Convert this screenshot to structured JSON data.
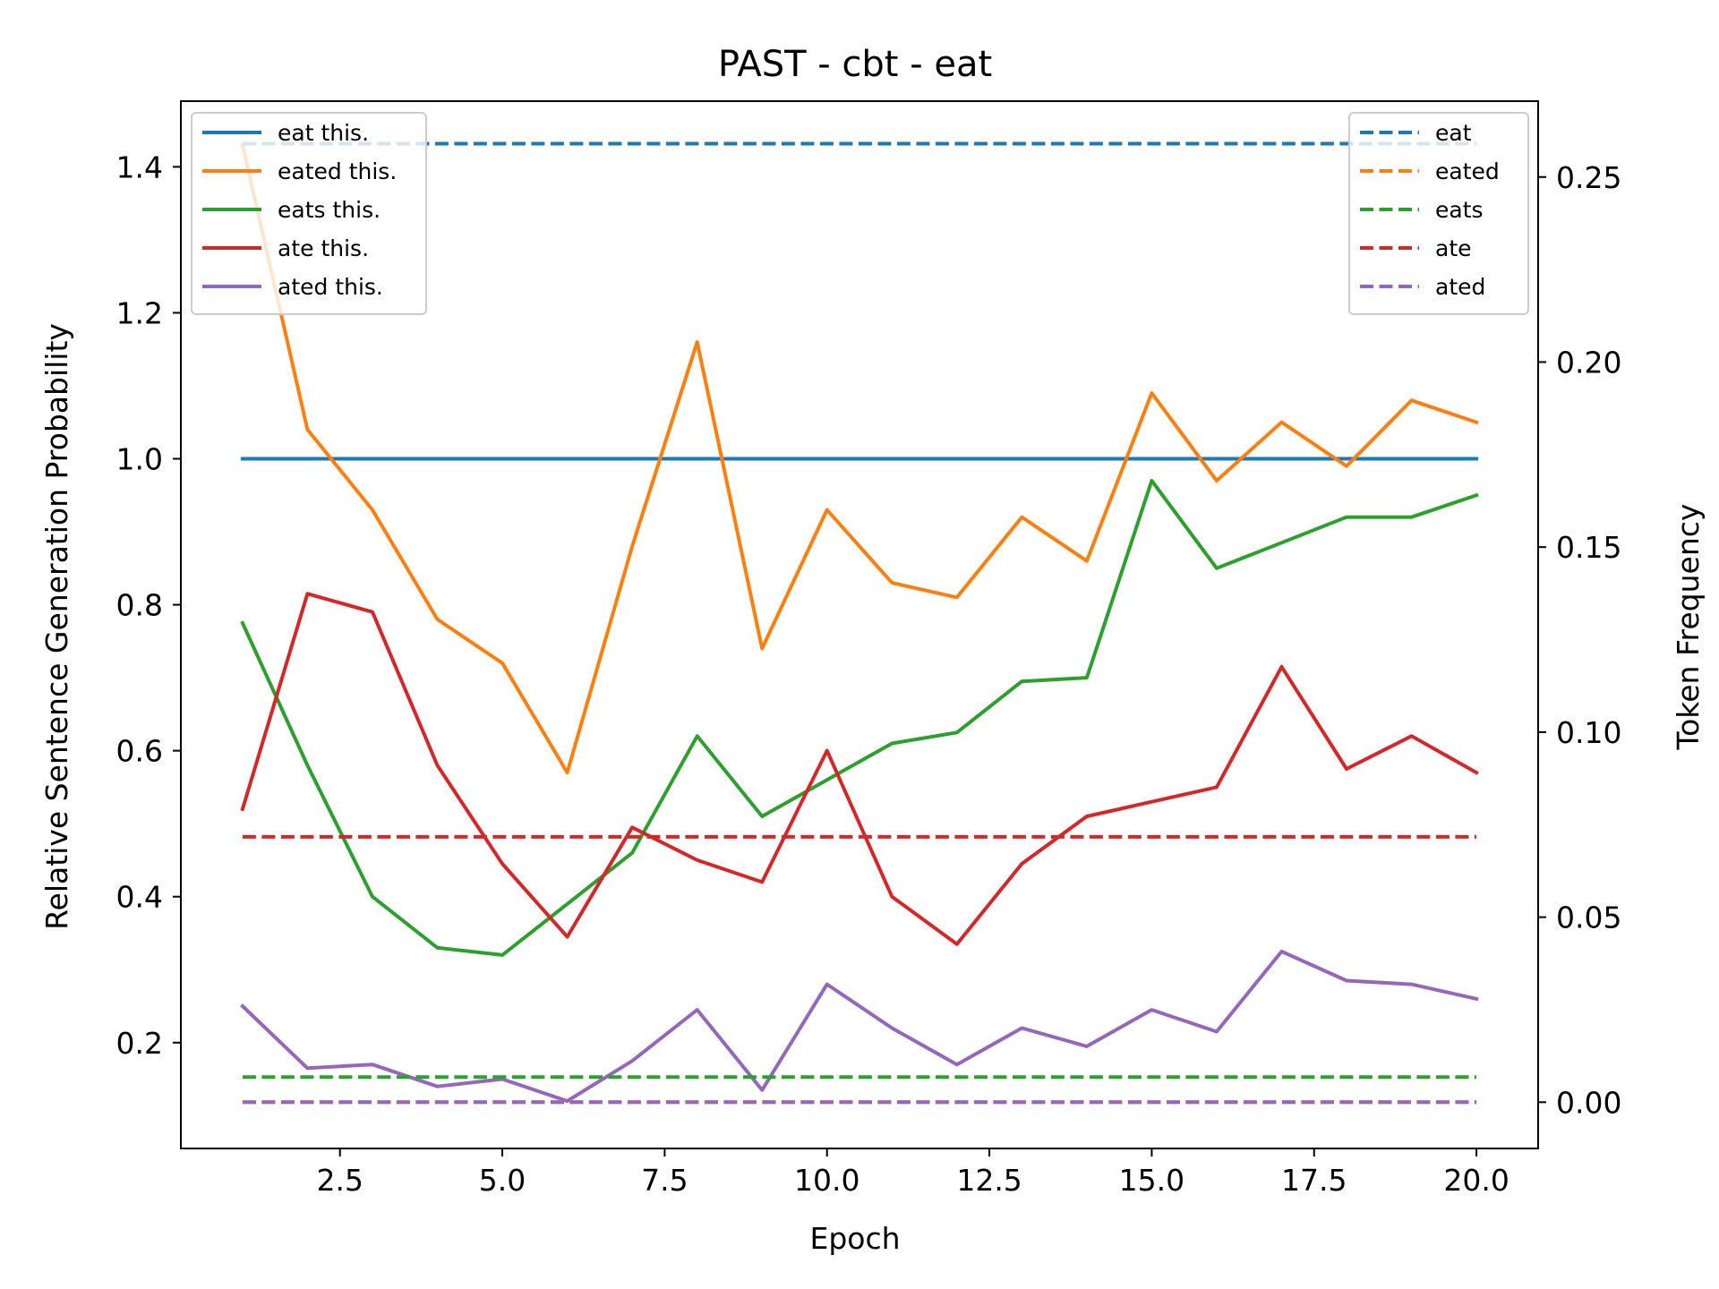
{
  "chart_data": {
    "type": "line",
    "title": "PAST - cbt - eat",
    "xlabel": "Epoch",
    "ylabel": "Relative Sentence Generation Probability",
    "y2label": "Token Frequency",
    "xlim": [
      0.05,
      20.95
    ],
    "ylim": [
      0.055,
      1.49
    ],
    "y2lim": [
      -0.0125,
      0.2705
    ],
    "xticks": [
      "2.5",
      "5.0",
      "7.5",
      "10.0",
      "12.5",
      "15.0",
      "17.5",
      "20.0"
    ],
    "xtick_values": [
      2.5,
      5.0,
      7.5,
      10.0,
      12.5,
      15.0,
      17.5,
      20.0
    ],
    "yticks": [
      "0.2",
      "0.4",
      "0.6",
      "0.8",
      "1.0",
      "1.2",
      "1.4"
    ],
    "ytick_values": [
      0.2,
      0.4,
      0.6,
      0.8,
      1.0,
      1.2,
      1.4
    ],
    "y2ticks": [
      "0.00",
      "0.05",
      "0.10",
      "0.15",
      "0.20",
      "0.25"
    ],
    "y2tick_values": [
      0.0,
      0.05,
      0.1,
      0.15,
      0.2,
      0.25
    ],
    "x": [
      1,
      2,
      3,
      4,
      5,
      6,
      7,
      8,
      9,
      10,
      11,
      12,
      13,
      14,
      15,
      16,
      17,
      18,
      19,
      20
    ],
    "series": [
      {
        "name": "eat this.",
        "axis": "left",
        "color": "#1f77b4",
        "style": "solid",
        "values": [
          1.0,
          1.0,
          1.0,
          1.0,
          1.0,
          1.0,
          1.0,
          1.0,
          1.0,
          1.0,
          1.0,
          1.0,
          1.0,
          1.0,
          1.0,
          1.0,
          1.0,
          1.0,
          1.0,
          1.0
        ]
      },
      {
        "name": "eated this.",
        "axis": "left",
        "color": "#ff7f0e",
        "style": "solid",
        "values": [
          1.43,
          1.04,
          0.93,
          0.78,
          0.72,
          0.57,
          0.88,
          1.16,
          0.74,
          0.93,
          0.83,
          0.81,
          0.92,
          0.86,
          1.09,
          0.97,
          1.05,
          0.99,
          1.08,
          1.05
        ]
      },
      {
        "name": "eats this.",
        "axis": "left",
        "color": "#2ca02c",
        "style": "solid",
        "values": [
          0.775,
          0.58,
          0.4,
          0.33,
          0.32,
          0.39,
          0.46,
          0.62,
          0.51,
          0.56,
          0.61,
          0.625,
          0.695,
          0.7,
          0.97,
          0.85,
          0.885,
          0.92,
          0.92,
          0.95
        ]
      },
      {
        "name": "ate this.",
        "axis": "left",
        "color": "#d62728",
        "style": "solid",
        "values": [
          0.52,
          0.815,
          0.79,
          0.58,
          0.445,
          0.345,
          0.495,
          0.45,
          0.42,
          0.6,
          0.4,
          0.335,
          0.445,
          0.51,
          0.53,
          0.55,
          0.715,
          0.575,
          0.62,
          0.57
        ]
      },
      {
        "name": "ated this.",
        "axis": "left",
        "color": "#9467bd",
        "style": "solid",
        "values": [
          0.25,
          0.165,
          0.17,
          0.14,
          0.15,
          0.12,
          0.175,
          0.245,
          0.135,
          0.28,
          0.22,
          0.17,
          0.22,
          0.195,
          0.245,
          0.215,
          0.325,
          0.285,
          0.28,
          0.26
        ]
      },
      {
        "name": "eat",
        "axis": "right",
        "color": "#1f77b4",
        "style": "dashed",
        "values": [
          0.259,
          0.259,
          0.259,
          0.259,
          0.259,
          0.259,
          0.259,
          0.259,
          0.259,
          0.259,
          0.259,
          0.259,
          0.259,
          0.259,
          0.259,
          0.259,
          0.259,
          0.259,
          0.259,
          0.259
        ]
      },
      {
        "name": "eated",
        "axis": "right",
        "color": "#ff7f0e",
        "style": "dashed",
        "values": [
          0.0,
          0.0,
          0.0,
          0.0,
          0.0,
          0.0,
          0.0,
          0.0,
          0.0,
          0.0,
          0.0,
          0.0,
          0.0,
          0.0,
          0.0,
          0.0,
          0.0,
          0.0,
          0.0,
          0.0
        ]
      },
      {
        "name": "eats",
        "axis": "right",
        "color": "#2ca02c",
        "style": "dashed",
        "values": [
          0.0068,
          0.0068,
          0.0068,
          0.0068,
          0.0068,
          0.0068,
          0.0068,
          0.0068,
          0.0068,
          0.0068,
          0.0068,
          0.0068,
          0.0068,
          0.0068,
          0.0068,
          0.0068,
          0.0068,
          0.0068,
          0.0068,
          0.0068
        ]
      },
      {
        "name": "ate",
        "axis": "right",
        "color": "#d62728",
        "style": "dashed",
        "values": [
          0.0717,
          0.0717,
          0.0717,
          0.0717,
          0.0717,
          0.0717,
          0.0717,
          0.0717,
          0.0717,
          0.0717,
          0.0717,
          0.0717,
          0.0717,
          0.0717,
          0.0717,
          0.0717,
          0.0717,
          0.0717,
          0.0717,
          0.0717
        ]
      },
      {
        "name": "ated",
        "axis": "right",
        "color": "#9467bd",
        "style": "dashed",
        "values": [
          0.0,
          0.0,
          0.0,
          0.0,
          0.0,
          0.0,
          0.0,
          0.0,
          0.0,
          0.0,
          0.0,
          0.0,
          0.0,
          0.0,
          0.0,
          0.0,
          0.0,
          0.0,
          0.0,
          0.0
        ]
      }
    ],
    "legends": [
      {
        "placement": "upper left",
        "entries": [
          "eat this.",
          "eated this.",
          "eats this.",
          "ate this.",
          "ated this."
        ]
      },
      {
        "placement": "upper right",
        "entries": [
          "eat",
          "eated",
          "eats",
          "ate",
          "ated"
        ]
      }
    ],
    "grid": false
  }
}
